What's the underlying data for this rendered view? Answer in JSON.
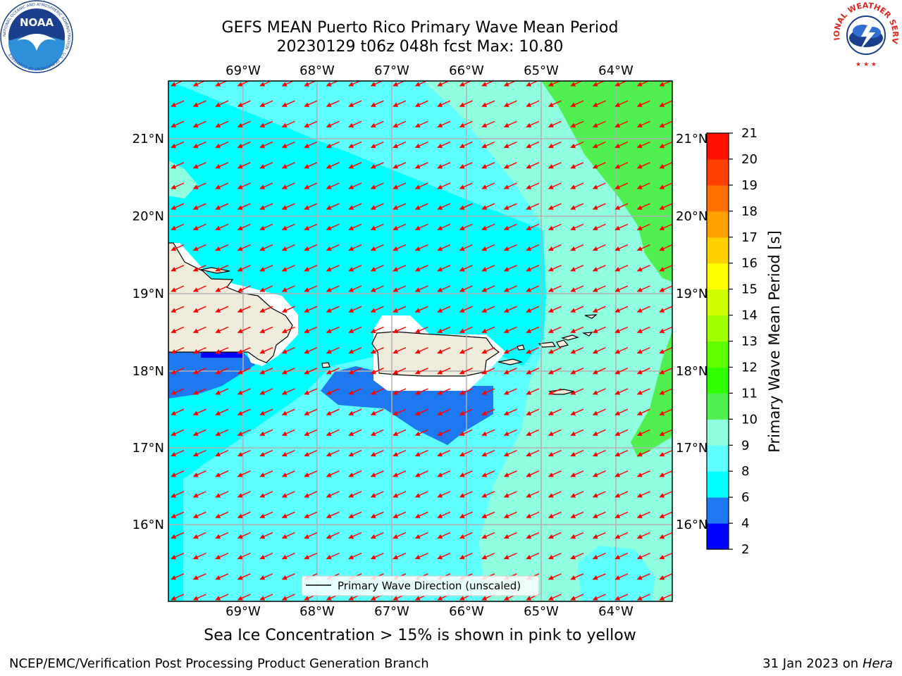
{
  "header": {
    "title_line1": "GEFS MEAN Puerto Rico Primary Wave Mean Period",
    "title_line2": "20230129 t06z 048h fcst   Max: 10.80"
  },
  "logos": {
    "noaa_text": "NOAA",
    "noaa_ring_text": "NATIONAL OCEANIC AND ATMOSPHERIC ADMINISTRATION · U.S. DEPARTMENT OF COMMERCE",
    "nws_ring_text": "NATIONAL WEATHER SERVICE"
  },
  "map": {
    "lon_labels": [
      "69°W",
      "68°W",
      "67°W",
      "66°W",
      "65°W",
      "64°W"
    ],
    "lat_labels": [
      "21°N",
      "20°N",
      "19°N",
      "18°N",
      "17°N",
      "16°N"
    ],
    "legend_label": "Primary Wave Direction (unscaled)",
    "arrow_color": "#ff0000",
    "grid_color": "#b0b0b0",
    "land_color": "#efecdc"
  },
  "colorbar": {
    "label": "Primary Wave Mean Period [s]",
    "ticks": [
      "2",
      "4",
      "6",
      "8",
      "9",
      "10",
      "11",
      "12",
      "13",
      "14",
      "15",
      "16",
      "17",
      "18",
      "19",
      "20",
      "21"
    ],
    "colors": [
      "#0000ff",
      "#1e78f0",
      "#00ffff",
      "#60ffff",
      "#90ffe0",
      "#50f050",
      "#30ff00",
      "#60ff00",
      "#a0ff00",
      "#d0ff00",
      "#ffff00",
      "#ffd000",
      "#ffa000",
      "#ff7000",
      "#ff4000",
      "#ff1000"
    ]
  },
  "footer": {
    "sea_ice_note": "Sea Ice Concentration > 15% is shown in pink to yellow",
    "credit_left": "NCEP/EMC/Verification Post Processing Product Generation Branch",
    "credit_date": "31 Jan 2023 on ",
    "credit_machine": "Hera"
  }
}
